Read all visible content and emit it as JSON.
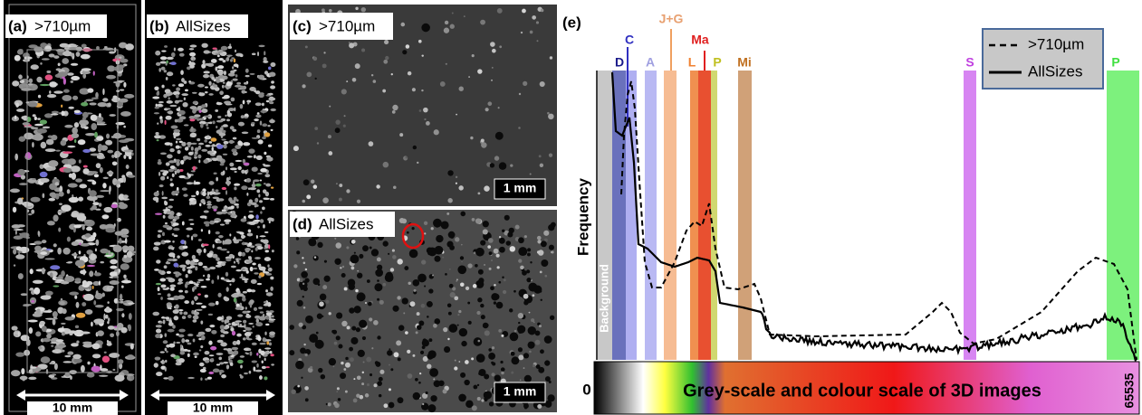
{
  "panels": [
    {
      "label": "(a)",
      "title": ">710µm",
      "scale_bar": "10 mm"
    },
    {
      "label": "(b)",
      "title": "AllSizes",
      "scale_bar": "10 mm"
    },
    {
      "label": "(c)",
      "title": ">710µm",
      "scale_bar": "1 mm"
    },
    {
      "label": "(d)",
      "title": "AllSizes",
      "scale_bar": "1 mm"
    },
    {
      "label": "(e)",
      "y_label": "Frequency",
      "background_label": "Background",
      "legend": [
        ">710µm",
        "AllSizes"
      ],
      "phases": [
        "D",
        "C",
        "A",
        "J+G",
        "L",
        "Ma",
        "P",
        "Mi",
        "S",
        "P"
      ],
      "colorbar": {
        "min": "0",
        "max": "65535",
        "caption": "Grey-scale and colour scale of 3D images"
      }
    }
  ]
}
